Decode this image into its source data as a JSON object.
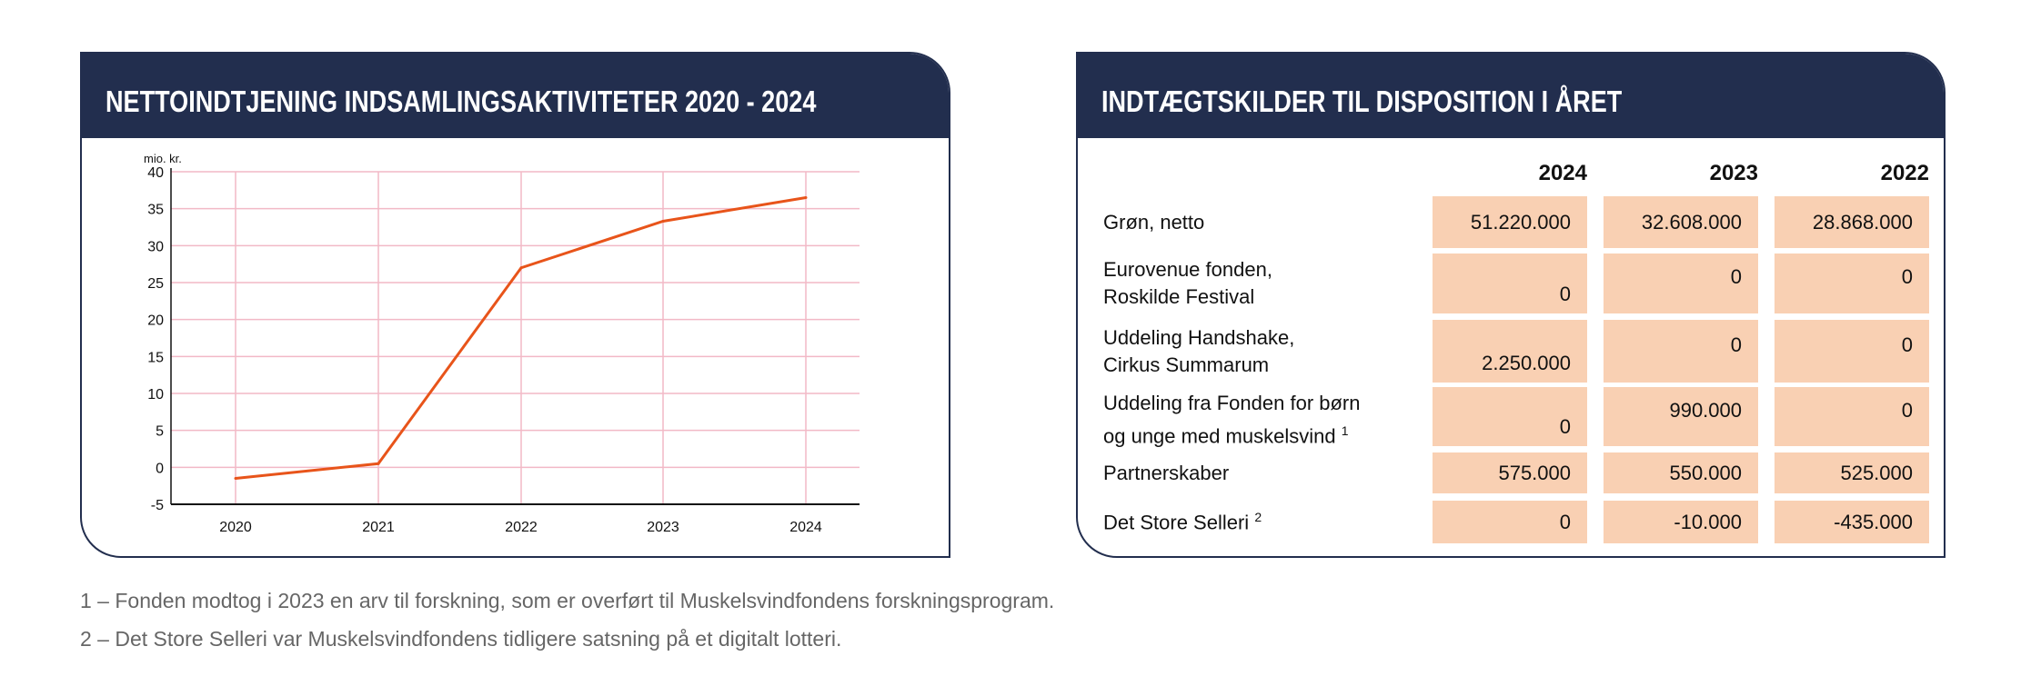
{
  "chart_panel": {
    "title": "NETTOINDTJENING INDSAMLINGSAKTIVITETER 2020 - 2024"
  },
  "chart_data": {
    "type": "line",
    "title": "NETTOINDTJENING INDSAMLINGSAKTIVITETER 2020 - 2024",
    "ylabel": "mio. kr.",
    "xlabel": "",
    "categories": [
      "2020",
      "2021",
      "2022",
      "2023",
      "2024"
    ],
    "values": [
      -1.5,
      0.5,
      27,
      33.3,
      36.5
    ],
    "ylim": [
      -5,
      40
    ],
    "yticks": [
      "40",
      "35",
      "30",
      "25",
      "20",
      "15",
      "10",
      "5",
      "0",
      "-5"
    ],
    "grid": true,
    "line_color": "#e8541a",
    "grid_color": "#f2b9c6"
  },
  "table_panel": {
    "title": "INDTÆGTSKILDER TIL DISPOSITION I ÅRET",
    "columns": [
      "2024",
      "2023",
      "2022"
    ],
    "rows": [
      {
        "label1": "Grøn, netto",
        "label2": "",
        "sup": "",
        "values": [
          "51.220.000",
          "32.608.000",
          "28.868.000"
        ]
      },
      {
        "label1": "Eurovenue fonden,",
        "label2": "Roskilde Festival",
        "sup": "",
        "values": [
          "0",
          "0",
          "0"
        ]
      },
      {
        "label1": "Uddeling Handshake,",
        "label2": "Cirkus Summarum",
        "sup": "",
        "values": [
          "2.250.000",
          "0",
          "0"
        ]
      },
      {
        "label1": "Uddeling fra Fonden for børn",
        "label2": "og unge med muskelsvind",
        "sup": "1",
        "values": [
          "0",
          "990.000",
          "0"
        ]
      },
      {
        "label1": "Partnerskaber",
        "label2": "",
        "sup": "",
        "values": [
          "575.000",
          "550.000",
          "525.000"
        ]
      },
      {
        "label1": "Det Store Selleri",
        "label2": "",
        "sup": "2",
        "values": [
          "0",
          "-10.000",
          "-435.000"
        ]
      }
    ],
    "cell_color": "#f9d0b3",
    "header_color": "#222e4e"
  },
  "footnotes": [
    "1 – Fonden modtog i 2023 en arv til forskning, som er overført til Muskelsvindfondens forskningsprogram.",
    "2 – Det Store Selleri var Muskelsvindfondens tidligere satsning på et digitalt lotteri."
  ]
}
